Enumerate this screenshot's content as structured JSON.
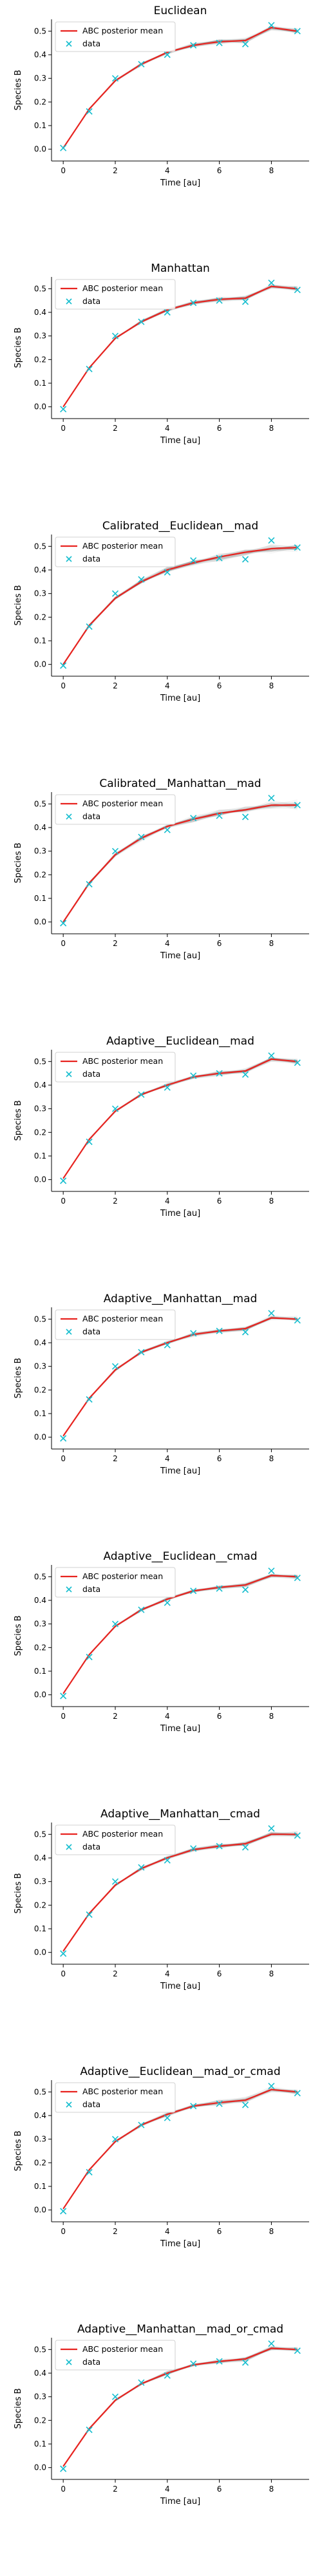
{
  "figure": {
    "xlabel": "Time [au]",
    "ylabel": "Species B",
    "x_ticks": [
      0,
      2,
      4,
      6,
      8
    ],
    "y_ticks": [
      "0.0",
      "0.1",
      "0.2",
      "0.3",
      "0.4",
      "0.5"
    ],
    "legend": {
      "mean_label": "ABC posterior mean",
      "data_label": "data"
    },
    "colors": {
      "mean": "#e8231f",
      "data": "#17becf",
      "samples": "#808080"
    }
  },
  "chart_data": [
    {
      "type": "line",
      "title": "Euclidean",
      "xlim": [
        -0.45,
        9.45
      ],
      "ylim": [
        -0.05,
        0.55
      ],
      "x": [
        0,
        1,
        2,
        3,
        4,
        5,
        6,
        7,
        8,
        9
      ],
      "series": [
        {
          "name": "ABC posterior mean",
          "values": [
            0.005,
            0.17,
            0.29,
            0.36,
            0.41,
            0.44,
            0.455,
            0.46,
            0.515,
            0.5
          ]
        },
        {
          "name": "data",
          "values": [
            0.005,
            0.16,
            0.3,
            0.36,
            0.4,
            0.44,
            0.45,
            0.445,
            0.525,
            0.5
          ]
        }
      ]
    },
    {
      "type": "line",
      "title": "Manhattan",
      "xlim": [
        -0.45,
        9.45
      ],
      "ylim": [
        -0.05,
        0.55
      ],
      "x": [
        0,
        1,
        2,
        3,
        4,
        5,
        6,
        7,
        8,
        9
      ],
      "series": [
        {
          "name": "ABC posterior mean",
          "values": [
            0.0,
            0.165,
            0.29,
            0.36,
            0.41,
            0.44,
            0.455,
            0.46,
            0.51,
            0.5
          ]
        },
        {
          "name": "data",
          "values": [
            -0.01,
            0.16,
            0.3,
            0.36,
            0.4,
            0.44,
            0.45,
            0.445,
            0.525,
            0.495
          ]
        }
      ]
    },
    {
      "type": "line",
      "title": "Calibrated__Euclidean__mad",
      "xlim": [
        -0.45,
        9.45
      ],
      "ylim": [
        -0.05,
        0.55
      ],
      "x": [
        0,
        1,
        2,
        3,
        4,
        5,
        6,
        7,
        8,
        9
      ],
      "series": [
        {
          "name": "ABC posterior mean",
          "values": [
            0.0,
            0.165,
            0.28,
            0.35,
            0.4,
            0.43,
            0.455,
            0.475,
            0.49,
            0.495
          ]
        },
        {
          "name": "data",
          "values": [
            -0.005,
            0.16,
            0.3,
            0.36,
            0.39,
            0.44,
            0.45,
            0.445,
            0.525,
            0.495
          ]
        }
      ]
    },
    {
      "type": "line",
      "title": "Calibrated__Manhattan__mad",
      "xlim": [
        -0.45,
        9.45
      ],
      "ylim": [
        -0.05,
        0.55
      ],
      "x": [
        0,
        1,
        2,
        3,
        4,
        5,
        6,
        7,
        8,
        9
      ],
      "series": [
        {
          "name": "ABC posterior mean",
          "values": [
            0.0,
            0.165,
            0.285,
            0.355,
            0.405,
            0.435,
            0.46,
            0.475,
            0.495,
            0.495
          ]
        },
        {
          "name": "data",
          "values": [
            -0.005,
            0.16,
            0.3,
            0.36,
            0.39,
            0.44,
            0.45,
            0.445,
            0.525,
            0.495
          ]
        }
      ]
    },
    {
      "type": "line",
      "title": "Adaptive__Euclidean__mad",
      "xlim": [
        -0.45,
        9.45
      ],
      "ylim": [
        -0.05,
        0.55
      ],
      "x": [
        0,
        1,
        2,
        3,
        4,
        5,
        6,
        7,
        8,
        9
      ],
      "series": [
        {
          "name": "ABC posterior mean",
          "values": [
            0.005,
            0.17,
            0.29,
            0.36,
            0.4,
            0.435,
            0.45,
            0.46,
            0.51,
            0.5
          ]
        },
        {
          "name": "data",
          "values": [
            -0.005,
            0.16,
            0.3,
            0.36,
            0.39,
            0.44,
            0.45,
            0.445,
            0.525,
            0.495
          ]
        }
      ]
    },
    {
      "type": "line",
      "title": "Adaptive__Manhattan__mad",
      "xlim": [
        -0.45,
        9.45
      ],
      "ylim": [
        -0.05,
        0.55
      ],
      "x": [
        0,
        1,
        2,
        3,
        4,
        5,
        6,
        7,
        8,
        9
      ],
      "series": [
        {
          "name": "ABC posterior mean",
          "values": [
            0.005,
            0.165,
            0.285,
            0.36,
            0.4,
            0.435,
            0.45,
            0.46,
            0.505,
            0.5
          ]
        },
        {
          "name": "data",
          "values": [
            -0.005,
            0.16,
            0.3,
            0.36,
            0.39,
            0.44,
            0.45,
            0.445,
            0.525,
            0.495
          ]
        }
      ]
    },
    {
      "type": "line",
      "title": "Adaptive__Euclidean__cmad",
      "xlim": [
        -0.45,
        9.45
      ],
      "ylim": [
        -0.05,
        0.55
      ],
      "x": [
        0,
        1,
        2,
        3,
        4,
        5,
        6,
        7,
        8,
        9
      ],
      "series": [
        {
          "name": "ABC posterior mean",
          "values": [
            0.005,
            0.17,
            0.29,
            0.36,
            0.405,
            0.44,
            0.455,
            0.465,
            0.505,
            0.5
          ]
        },
        {
          "name": "data",
          "values": [
            -0.005,
            0.16,
            0.3,
            0.36,
            0.39,
            0.44,
            0.45,
            0.445,
            0.525,
            0.495
          ]
        }
      ]
    },
    {
      "type": "line",
      "title": "Adaptive__Manhattan__cmad",
      "xlim": [
        -0.45,
        9.45
      ],
      "ylim": [
        -0.05,
        0.55
      ],
      "x": [
        0,
        1,
        2,
        3,
        4,
        5,
        6,
        7,
        8,
        9
      ],
      "series": [
        {
          "name": "ABC posterior mean",
          "values": [
            0.005,
            0.165,
            0.285,
            0.355,
            0.4,
            0.435,
            0.45,
            0.46,
            0.5,
            0.5
          ]
        },
        {
          "name": "data",
          "values": [
            -0.005,
            0.16,
            0.3,
            0.36,
            0.39,
            0.44,
            0.45,
            0.445,
            0.525,
            0.495
          ]
        }
      ]
    },
    {
      "type": "line",
      "title": "Adaptive__Euclidean__mad_or_cmad",
      "xlim": [
        -0.45,
        9.45
      ],
      "ylim": [
        -0.05,
        0.55
      ],
      "x": [
        0,
        1,
        2,
        3,
        4,
        5,
        6,
        7,
        8,
        9
      ],
      "series": [
        {
          "name": "ABC posterior mean",
          "values": [
            0.005,
            0.17,
            0.29,
            0.36,
            0.405,
            0.44,
            0.455,
            0.465,
            0.51,
            0.5
          ]
        },
        {
          "name": "data",
          "values": [
            -0.005,
            0.16,
            0.3,
            0.36,
            0.39,
            0.44,
            0.45,
            0.445,
            0.525,
            0.495
          ]
        }
      ]
    },
    {
      "type": "line",
      "title": "Adaptive__Manhattan__mad_or_cmad",
      "xlim": [
        -0.45,
        9.45
      ],
      "ylim": [
        -0.05,
        0.55
      ],
      "x": [
        0,
        1,
        2,
        3,
        4,
        5,
        6,
        7,
        8,
        9
      ],
      "series": [
        {
          "name": "ABC posterior mean",
          "values": [
            0.005,
            0.165,
            0.285,
            0.355,
            0.4,
            0.435,
            0.45,
            0.46,
            0.505,
            0.5
          ]
        },
        {
          "name": "data",
          "values": [
            -0.005,
            0.16,
            0.3,
            0.36,
            0.39,
            0.44,
            0.45,
            0.445,
            0.525,
            0.495
          ]
        }
      ]
    }
  ]
}
